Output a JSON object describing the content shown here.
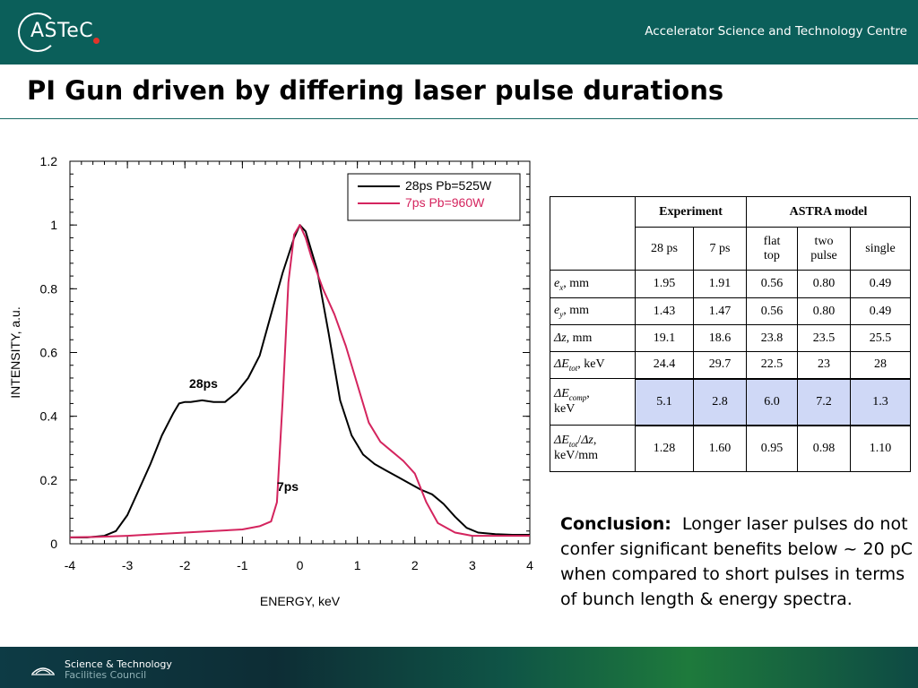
{
  "header": {
    "logo_text": "ASTeC",
    "org_name": "Accelerator Science and Technology Centre"
  },
  "title": "PI Gun driven by differing laser pulse durations",
  "chart_data": {
    "type": "line",
    "xlabel": "ENERGY, keV",
    "ylabel": "INTENSITY, a.u.",
    "xlim": [
      -4,
      4
    ],
    "ylim": [
      0,
      1.2
    ],
    "xticks": [
      "-4",
      "-3",
      "-2",
      "-1",
      "0",
      "1",
      "2",
      "3",
      "4"
    ],
    "yticks": [
      "0",
      "0.2",
      "0.4",
      "0.6",
      "0.8",
      "1",
      "1.2"
    ],
    "legend_position": "top-right",
    "series": [
      {
        "name": "28ps Pb=525W",
        "color": "#000000",
        "annotation": "28ps",
        "x": [
          -4.0,
          -3.7,
          -3.4,
          -3.2,
          -3.0,
          -2.8,
          -2.6,
          -2.4,
          -2.2,
          -2.1,
          -2.0,
          -1.9,
          -1.7,
          -1.5,
          -1.3,
          -1.1,
          -0.9,
          -0.7,
          -0.5,
          -0.3,
          -0.1,
          0.0,
          0.1,
          0.3,
          0.5,
          0.7,
          0.9,
          1.1,
          1.3,
          1.5,
          1.7,
          1.9,
          2.1,
          2.3,
          2.5,
          2.7,
          2.9,
          3.1,
          3.4,
          3.7,
          4.0
        ],
        "y": [
          0.02,
          0.02,
          0.025,
          0.04,
          0.09,
          0.17,
          0.25,
          0.34,
          0.41,
          0.44,
          0.445,
          0.445,
          0.45,
          0.445,
          0.445,
          0.475,
          0.52,
          0.59,
          0.72,
          0.85,
          0.96,
          1.0,
          0.98,
          0.86,
          0.66,
          0.45,
          0.34,
          0.28,
          0.25,
          0.23,
          0.21,
          0.19,
          0.17,
          0.155,
          0.125,
          0.085,
          0.05,
          0.035,
          0.03,
          0.028,
          0.028
        ]
      },
      {
        "name": "7ps Pb=960W",
        "color": "#d4245e",
        "annotation": "7ps",
        "x": [
          -4.0,
          -3.5,
          -3.0,
          -2.5,
          -2.0,
          -1.5,
          -1.0,
          -0.7,
          -0.5,
          -0.4,
          -0.3,
          -0.2,
          -0.1,
          0.0,
          0.1,
          0.2,
          0.4,
          0.6,
          0.8,
          1.0,
          1.2,
          1.4,
          1.6,
          1.8,
          2.0,
          2.2,
          2.4,
          2.7,
          3.0,
          3.4,
          4.0
        ],
        "y": [
          0.02,
          0.022,
          0.025,
          0.03,
          0.035,
          0.04,
          0.045,
          0.055,
          0.07,
          0.13,
          0.45,
          0.82,
          0.97,
          1.0,
          0.96,
          0.9,
          0.8,
          0.72,
          0.62,
          0.5,
          0.38,
          0.32,
          0.29,
          0.26,
          0.22,
          0.13,
          0.065,
          0.035,
          0.025,
          0.025,
          0.025
        ]
      }
    ]
  },
  "table": {
    "group_headers": [
      "Experiment",
      "ASTRA model"
    ],
    "sub_headers": [
      "28 ps",
      "7 ps",
      "flat top",
      "two pulse",
      "single"
    ],
    "rows": [
      {
        "label": "ex, mm",
        "values": [
          "1.95",
          "1.91",
          "0.56",
          "0.80",
          "0.49"
        ]
      },
      {
        "label": "ey, mm",
        "values": [
          "1.43",
          "1.47",
          "0.56",
          "0.80",
          "0.49"
        ]
      },
      {
        "label": "Δz, mm",
        "values": [
          "19.1",
          "18.6",
          "23.8",
          "23.5",
          "25.5"
        ]
      },
      {
        "label": "ΔEtot, keV",
        "values": [
          "24.4",
          "29.7",
          "22.5",
          "23",
          "28"
        ]
      },
      {
        "label": "ΔEcomp, keV",
        "values": [
          "5.1",
          "2.8",
          "6.0",
          "7.2",
          "1.3"
        ],
        "highlight": true
      },
      {
        "label": "ΔEtot/Δz, keV/mm",
        "values": [
          "1.28",
          "1.60",
          "0.95",
          "0.98",
          "1.10"
        ]
      }
    ]
  },
  "conclusion": {
    "label": "Conclusion:",
    "text": "Longer laser pulses do not confer significant benefits below ~ 20 pC when compared to short pulses in terms of bunch length & energy spectra."
  },
  "footer": {
    "line1": "Science & Technology",
    "line2": "Facilities Council"
  },
  "colors": {
    "header_bg": "#0b5f5a",
    "series_28ps": "#000000",
    "series_7ps": "#d4245e",
    "highlight_cell": "#cfd8f6"
  }
}
